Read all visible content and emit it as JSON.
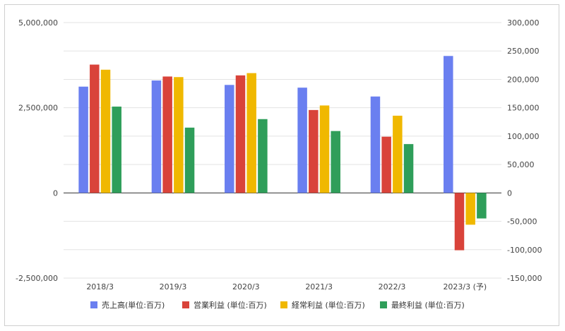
{
  "chart_data": {
    "type": "bar",
    "categories": [
      "2018/3",
      "2019/3",
      "2020/3",
      "2021/3",
      "2022/3",
      "2023/3 (予)"
    ],
    "series": [
      {
        "name": "売上高(単位:百万)",
        "axis": "left",
        "color": "#6a7ff0",
        "values": [
          3120000,
          3300000,
          3170000,
          3090000,
          2830000,
          4020000
        ]
      },
      {
        "name": "営業利益 (単位:百万)",
        "axis": "right",
        "color": "#d9433a",
        "values": [
          226000,
          205000,
          207000,
          146000,
          99000,
          -101000
        ]
      },
      {
        "name": "経常利益 (単位:百万)",
        "axis": "right",
        "color": "#f0b800",
        "values": [
          217000,
          204000,
          211000,
          154000,
          136000,
          -56000
        ]
      },
      {
        "name": "最終利益 (単位:百万)",
        "axis": "right",
        "color": "#2f9e5a",
        "values": [
          152000,
          115000,
          130000,
          109000,
          86000,
          -45000
        ]
      }
    ],
    "left_axis": {
      "ylim": [
        -2500000,
        5000000
      ],
      "ticks": [
        5000000,
        2500000,
        0,
        -2500000
      ],
      "tick_labels": [
        "5,000,000",
        "2,500,000",
        "0",
        "-2,500,000"
      ]
    },
    "right_axis": {
      "ylim": [
        -150000,
        300000
      ],
      "ticks": [
        300000,
        250000,
        200000,
        150000,
        100000,
        50000,
        0,
        -50000,
        -100000,
        -150000
      ],
      "tick_labels": [
        "300,000",
        "250,000",
        "200,000",
        "150,000",
        "100,000",
        "50,000",
        "0",
        "-50,000",
        "-100,000",
        "-150,000"
      ]
    },
    "grid": true,
    "legend_position": "bottom",
    "title": "",
    "xlabel": "",
    "ylabel": ""
  }
}
